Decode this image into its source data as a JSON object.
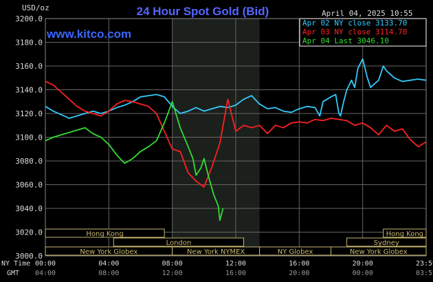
{
  "header": {
    "title": "24 Hour Spot Gold (Bid)",
    "unit": "USD/oz",
    "datetime": "April 04, 2025 10:55",
    "watermark": "www.kitco.com"
  },
  "legend": [
    {
      "label": "Apr 02 NY close 3133.70",
      "color": "#33ccff"
    },
    {
      "label": "Apr 03 NY close 3114.70",
      "color": "#ff2020"
    },
    {
      "label": "Apr 04 Last 3046.10",
      "color": "#33dd33"
    }
  ],
  "time_axis": {
    "row1_label": "NY Time",
    "row2_label": "GMT",
    "row1": [
      "00:00",
      "04:00",
      "08:00",
      "12:00",
      "16:00",
      "20:00",
      "23:59"
    ],
    "row2": [
      "04:00",
      "08:00",
      "12:00",
      "16:00",
      "20:00",
      "00:00",
      "03:59"
    ]
  },
  "sessions": [
    {
      "label": "Hong Kong",
      "start": 0.0,
      "end": 7.5,
      "row": 0
    },
    {
      "label": "",
      "start": 0.0,
      "end": 0.0,
      "row": 1
    },
    {
      "label": "London",
      "start": 4.3,
      "end": 12.5,
      "row": 1
    },
    {
      "label": "New York Globex",
      "start": 0.0,
      "end": 8.0,
      "row": 2
    },
    {
      "label": "New York NYMEX",
      "start": 8.0,
      "end": 13.5,
      "row": 2
    },
    {
      "label": "NY Globex",
      "start": 13.5,
      "end": 18.0,
      "row": 2
    },
    {
      "label": "Hong Kong",
      "start": 21.3,
      "end": 24.0,
      "row": 0
    },
    {
      "label": "Sydney",
      "start": 19.0,
      "end": 24.0,
      "row": 1
    },
    {
      "label": "New York Globex",
      "start": 18.0,
      "end": 24.0,
      "row": 2
    }
  ],
  "colors": {
    "background": "#000000",
    "grid": "#666666",
    "highlight": "#1c201c",
    "axis_text": "#dddddd",
    "title": "#5566ff",
    "session_border": "#c8b870"
  },
  "chart_data": {
    "type": "line",
    "title": "24 Hour Spot Gold (Bid)",
    "ylabel": "USD/oz",
    "xlim": [
      0,
      24
    ],
    "ylim": [
      3000,
      3200
    ],
    "yticks": [
      3000,
      3020,
      3040,
      3060,
      3080,
      3100,
      3120,
      3140,
      3160,
      3180,
      3200
    ],
    "xticks": [
      0,
      4,
      8,
      12,
      16,
      20,
      24
    ],
    "highlight_x": [
      8,
      13.5
    ],
    "series": [
      {
        "name": "Apr 02 NY close 3133.70",
        "color": "#33ccff",
        "x": [
          0,
          0.5,
          1,
          1.5,
          2,
          2.5,
          3,
          3.5,
          4,
          4.5,
          5,
          5.5,
          6,
          6.5,
          7,
          7.5,
          8,
          8.5,
          9,
          9.5,
          10,
          10.5,
          11,
          11.5,
          12,
          12.5,
          13,
          13.5,
          14,
          14.5,
          15,
          15.5,
          16,
          16.5,
          17,
          17.3,
          17.5,
          18,
          18.3,
          18.5,
          18.6,
          18.8,
          19,
          19.3,
          19.5,
          19.7,
          20,
          20.3,
          20.5,
          21,
          21.3,
          21.5,
          22,
          22.5,
          23,
          23.5,
          24
        ],
        "y": [
          3126,
          3122,
          3119,
          3116,
          3118,
          3120,
          3122,
          3120,
          3122,
          3125,
          3127,
          3130,
          3134,
          3135,
          3136,
          3134,
          3126,
          3120,
          3122,
          3125,
          3122,
          3124,
          3126,
          3125,
          3127,
          3132,
          3135,
          3128,
          3124,
          3125,
          3122,
          3121,
          3124,
          3126,
          3125,
          3118,
          3130,
          3134,
          3136,
          3120,
          3118,
          3130,
          3140,
          3148,
          3142,
          3158,
          3166,
          3150,
          3142,
          3148,
          3160,
          3156,
          3150,
          3147,
          3148,
          3149,
          3148
        ]
      },
      {
        "name": "Apr 03 NY close 3114.70",
        "color": "#ff2020",
        "x": [
          0,
          0.5,
          1,
          1.5,
          2,
          2.5,
          3,
          3.5,
          4,
          4.5,
          5,
          5.5,
          6,
          6.5,
          7,
          7.5,
          8,
          8.5,
          9,
          9.5,
          10,
          10.5,
          11,
          11.5,
          12,
          12.5,
          13,
          13.5,
          14,
          14.5,
          15,
          15.5,
          16,
          16.5,
          17,
          17.5,
          18,
          18.5,
          19,
          19.5,
          20,
          20.5,
          21,
          21.5,
          22,
          22.5,
          23,
          23.5,
          24
        ],
        "y": [
          3147,
          3144,
          3138,
          3132,
          3126,
          3122,
          3120,
          3118,
          3122,
          3128,
          3131,
          3130,
          3128,
          3126,
          3120,
          3105,
          3090,
          3088,
          3070,
          3063,
          3058,
          3075,
          3095,
          3132,
          3105,
          3110,
          3108,
          3110,
          3103,
          3110,
          3108,
          3112,
          3113,
          3112,
          3115,
          3114,
          3116,
          3115,
          3114,
          3110,
          3112,
          3108,
          3102,
          3110,
          3105,
          3107,
          3098,
          3092,
          3096
        ]
      },
      {
        "name": "Apr 04 Last 3046.10",
        "color": "#33dd33",
        "x": [
          0,
          0.5,
          1,
          1.5,
          2,
          2.5,
          3,
          3.5,
          4,
          4.5,
          5,
          5.5,
          6,
          6.5,
          7,
          7.5,
          8,
          8.5,
          9,
          9.3,
          9.5,
          9.8,
          10,
          10.3,
          10.6,
          10.9,
          11,
          11.2
        ],
        "y": [
          3097,
          3100,
          3102,
          3104,
          3106,
          3108,
          3103,
          3100,
          3094,
          3085,
          3078,
          3082,
          3088,
          3092,
          3097,
          3112,
          3130,
          3108,
          3092,
          3082,
          3068,
          3074,
          3082,
          3066,
          3052,
          3042,
          3030,
          3040
        ]
      }
    ]
  }
}
